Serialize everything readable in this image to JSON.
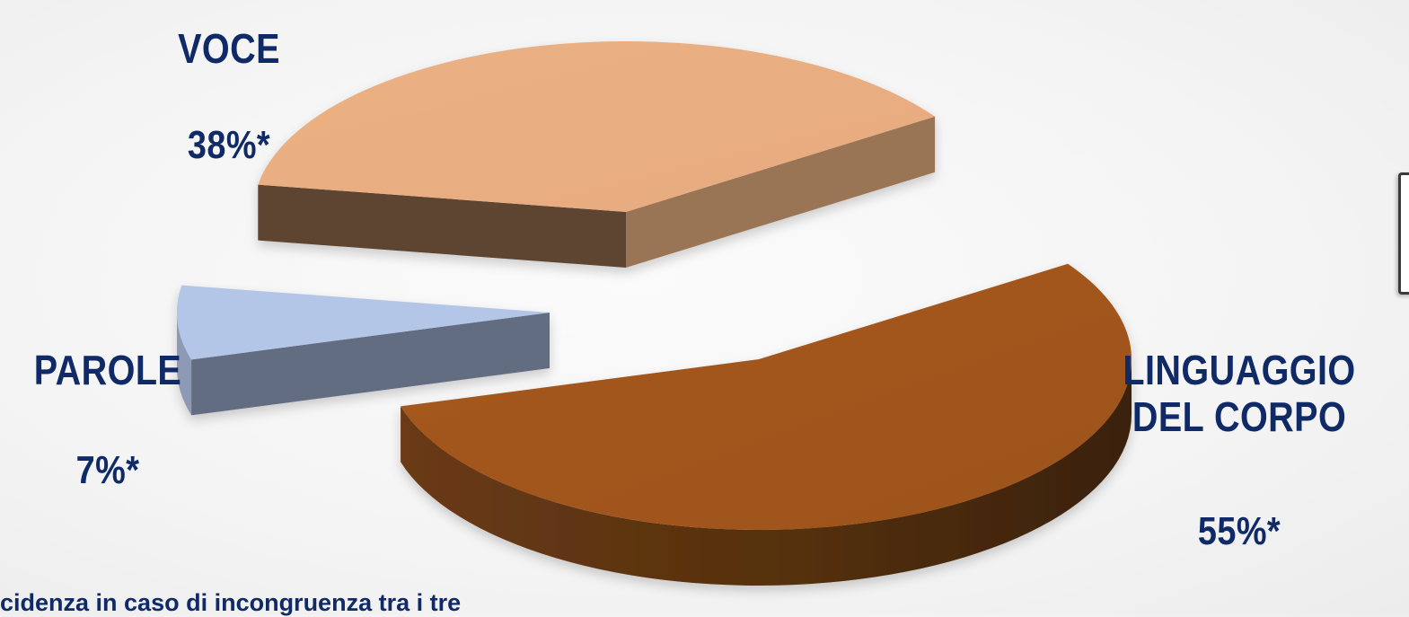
{
  "chart_data": {
    "type": "pie",
    "style": "3d-exploded",
    "slices": [
      {
        "label": "VOCE",
        "value": 38,
        "display": "38%*",
        "color": "#e8ae82",
        "side_color": "#9a7455",
        "rim_color": "#5d4431"
      },
      {
        "label": "LINGUAGGIO DEL CORPO",
        "value": 55,
        "display": "55%*",
        "color": "#a3561c",
        "side_color": "#6b3814",
        "rim_color": "#4b2a10"
      },
      {
        "label": "PAROLE",
        "value": 7,
        "display": "7%*",
        "color": "#b4c6e7",
        "side_color": "#646d82",
        "rim_color": "#8e9ab4"
      }
    ],
    "label_color": "#0f2a66",
    "legend": "none"
  },
  "labels": {
    "voce_name": "VOCE",
    "voce_pct": "38%*",
    "parole_name": "PAROLE",
    "parole_pct": "7%*",
    "linguaggio_name_line1": "LINGUAGGIO",
    "linguaggio_name_line2": "DEL CORPO",
    "linguaggio_pct": "55%*"
  },
  "footnote": "cidenza in caso di incongruenza tra i tre"
}
